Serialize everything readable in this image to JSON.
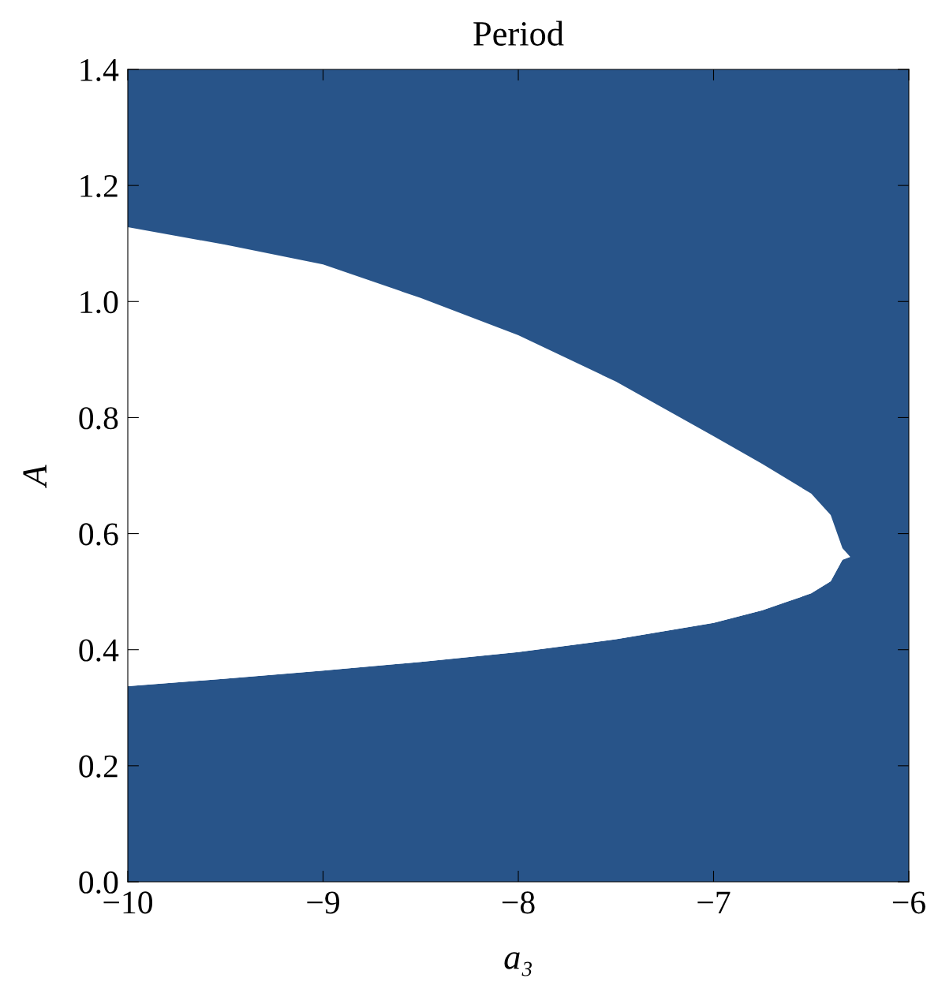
{
  "chart_data": {
    "type": "area",
    "stacked": true,
    "title": "Period",
    "xlabel": "a₃",
    "ylabel": "A",
    "x": [
      -10,
      -9.5,
      -9,
      -8.5,
      -8,
      -7.5,
      -7,
      -6.75,
      -6.5,
      -6.4,
      -6.34,
      -6.3,
      -6
    ],
    "series": [
      {
        "color": "#285489",
        "values": [
          0.337,
          0.35,
          0.364,
          0.379,
          0.396,
          0.418,
          0.446,
          0.468,
          0.497,
          0.518,
          0.555,
          0.56,
          0.56
        ]
      },
      {
        "color": "#ffffff",
        "values": [
          0.791,
          0.748,
          0.7,
          0.627,
          0.546,
          0.444,
          0.322,
          0.252,
          0.172,
          0.114,
          0.02,
          0,
          0
        ]
      },
      {
        "color": "#285489",
        "values": [
          0.272,
          0.302,
          0.336,
          0.394,
          0.458,
          0.538,
          0.632,
          0.68,
          0.731,
          0.768,
          0.825,
          0.84,
          0.84
        ]
      }
    ],
    "xlim": [
      -10,
      -6
    ],
    "xticks": [
      {
        "value": -10,
        "label": "−10"
      },
      {
        "value": -9,
        "label": "−9"
      },
      {
        "value": -8,
        "label": "−8"
      },
      {
        "value": -7,
        "label": "−7"
      },
      {
        "value": -6,
        "label": "−6"
      }
    ],
    "ylim": [
      0,
      1.4
    ],
    "yticks": [
      {
        "value": 0,
        "label": "0.0"
      },
      0.2,
      0.4,
      0.6,
      0.8,
      {
        "value": 1,
        "label": "1.0"
      },
      1.2,
      1.4
    ],
    "grid": false,
    "legend": false
  }
}
